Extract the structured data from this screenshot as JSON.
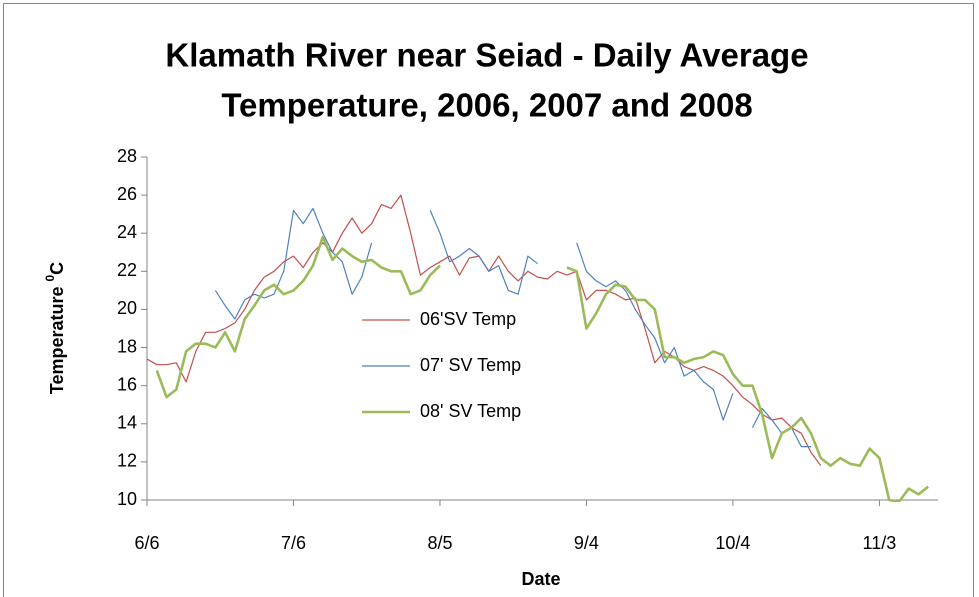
{
  "chart_data": {
    "type": "line",
    "title": [
      "Klamath River near Seiad - Daily Average",
      "Temperature, 2006, 2007 and 2008"
    ],
    "x_label": "Date",
    "y_label": {
      "text": "Temperature",
      "superscript": "0",
      "unit": "C"
    },
    "x": [
      0,
      2,
      4,
      6,
      8,
      10,
      12,
      14,
      16,
      18,
      20,
      22,
      24,
      26,
      28,
      30,
      32,
      34,
      36,
      38,
      40,
      42,
      44,
      46,
      48,
      50,
      52,
      54,
      56,
      58,
      60,
      62,
      64,
      66,
      68,
      70,
      72,
      74,
      76,
      78,
      80,
      82,
      84,
      86,
      88,
      90,
      92,
      94,
      96,
      98,
      100,
      102,
      104,
      106,
      108,
      110,
      112,
      114,
      116,
      118,
      120,
      122,
      124,
      126,
      128,
      130,
      132,
      134,
      136,
      138,
      140,
      142,
      144,
      146,
      148,
      150,
      152,
      154,
      156,
      158,
      160
    ],
    "xlim": [
      0,
      162
    ],
    "xticks": [
      {
        "value": 0,
        "label": "6/6"
      },
      {
        "value": 30,
        "label": "7/6"
      },
      {
        "value": 60,
        "label": "8/5"
      },
      {
        "value": 90,
        "label": "9/4"
      },
      {
        "value": 120,
        "label": "10/4"
      },
      {
        "value": 150,
        "label": "11/3"
      }
    ],
    "ylim": [
      10,
      28
    ],
    "yticks": [
      10,
      12,
      14,
      16,
      18,
      20,
      22,
      24,
      26,
      28
    ],
    "grid": false,
    "legend": "center",
    "series": [
      {
        "name": "06'SV Temp",
        "color": "#c0504d",
        "width": 1.2,
        "values": [
          17.4,
          17.1,
          17.1,
          17.2,
          16.2,
          17.8,
          18.8,
          18.8,
          19,
          19.3,
          20,
          21,
          21.7,
          22,
          22.5,
          22.8,
          22.2,
          23,
          23.5,
          23,
          24,
          24.8,
          24,
          24.5,
          25.5,
          25.3,
          26,
          24,
          21.8,
          22.2,
          22.5,
          22.8,
          21.8,
          22.7,
          22.8,
          22,
          22.8,
          22,
          21.5,
          22,
          21.7,
          21.6,
          22,
          21.8,
          22,
          20.5,
          21,
          21,
          20.8,
          20.5,
          20.6,
          19,
          17.2,
          17.8,
          17.5,
          17,
          16.8,
          17,
          16.8,
          16.5,
          16,
          15.4,
          15,
          14.5,
          14.2,
          14.3,
          13.8,
          13.5,
          12.5,
          11.8,
          null,
          null,
          null,
          null,
          null,
          null,
          null,
          null,
          null,
          null,
          null
        ]
      },
      {
        "name": "07' SV Temp",
        "color": "#4f81bd",
        "width": 1.2,
        "values": [
          null,
          null,
          null,
          null,
          null,
          null,
          null,
          21,
          20.2,
          19.5,
          20.5,
          20.8,
          20.6,
          20.8,
          22,
          25.2,
          24.5,
          25.3,
          24,
          23,
          22.5,
          20.8,
          21.7,
          23.5,
          null,
          null,
          null,
          null,
          null,
          25.2,
          24,
          22.5,
          22.8,
          23.2,
          22.8,
          22,
          22.3,
          21,
          20.8,
          22.8,
          22.4,
          null,
          null,
          null,
          23.5,
          22,
          21.5,
          21.2,
          21.5,
          21,
          20,
          19.2,
          18.5,
          17.2,
          18,
          16.5,
          16.8,
          16.2,
          15.8,
          14.2,
          15.6,
          null,
          13.8,
          14.8,
          14.2,
          13.5,
          13.8,
          12.8,
          12.8,
          null,
          null,
          null,
          null,
          null,
          null,
          null,
          null,
          null,
          null,
          null,
          null
        ]
      },
      {
        "name": "08' SV Temp",
        "color": "#9bbb59",
        "width": 2.6,
        "values": [
          null,
          16.8,
          15.4,
          15.8,
          17.8,
          18.2,
          18.2,
          18,
          18.8,
          17.8,
          19.5,
          20.2,
          21,
          21.3,
          20.8,
          21,
          21.5,
          22.3,
          23.8,
          22.6,
          23.2,
          22.8,
          22.5,
          22.6,
          22.2,
          22,
          22,
          20.8,
          21,
          21.8,
          22.3,
          null,
          null,
          null,
          null,
          null,
          null,
          null,
          null,
          null,
          null,
          null,
          null,
          22.2,
          22,
          19,
          19.8,
          20.8,
          21.3,
          21.2,
          20.5,
          20.5,
          20,
          17.5,
          17.5,
          17.2,
          17.4,
          17.5,
          17.8,
          17.6,
          16.6,
          16,
          16,
          14.5,
          12.2,
          13.5,
          13.8,
          14.3,
          13.5,
          12.2,
          11.8,
          12.2,
          11.9,
          11.8,
          12.7,
          12.2,
          10,
          9.9,
          10.6,
          10.3,
          10.7
        ]
      }
    ]
  }
}
